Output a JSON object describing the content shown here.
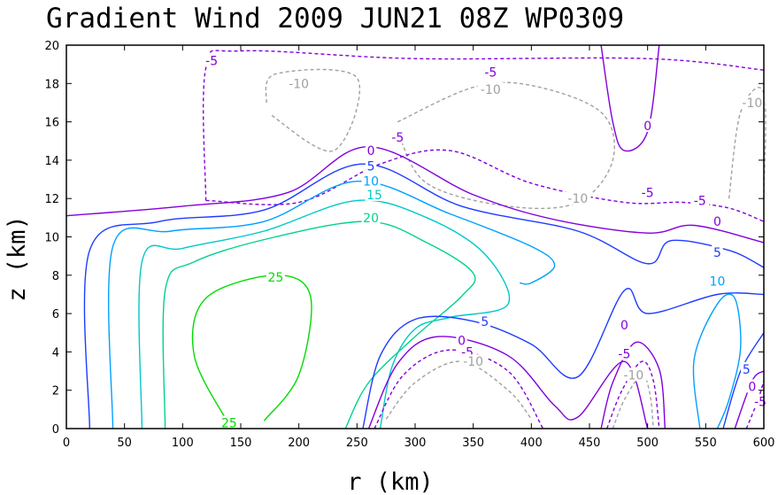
{
  "title": "Gradient Wind 2009 JUN21 08Z   WP0309",
  "chart_data": {
    "type": "contour",
    "title": "Gradient Wind 2009 JUN21 08Z   WP0309",
    "xlabel": "r (km)",
    "ylabel": "z (km)",
    "xlim": [
      0,
      600
    ],
    "ylim": [
      0,
      20
    ],
    "xticks": [
      "0",
      "50",
      "100",
      "150",
      "200",
      "250",
      "300",
      "350",
      "400",
      "450",
      "500",
      "550",
      "600"
    ],
    "yticks": [
      "0",
      "2",
      "4",
      "6",
      "8",
      "10",
      "12",
      "14",
      "16",
      "18",
      "20"
    ],
    "grid": false,
    "colors": {
      "-10": "#a0a0a0",
      "-5": "#8200dc",
      "0": "#8200dc",
      "5": "#1e3cff",
      "10": "#00a0ff",
      "15": "#00c8c8",
      "20": "#00d28c",
      "25": "#00dc00"
    },
    "contours": [
      {
        "level": -5,
        "label": "-5",
        "dashed": true,
        "points": [
          [
            120,
            11.9
          ],
          [
            120,
            18.8
          ],
          [
            150,
            19.7
          ],
          [
            300,
            19.3
          ],
          [
            500,
            19.3
          ],
          [
            600,
            18.7
          ]
        ]
      },
      {
        "level": -10,
        "label": "-10",
        "dashed": true,
        "points": [
          [
            172,
            17.0
          ],
          [
            180,
            18.5
          ],
          [
            250,
            18.3
          ],
          [
            230,
            14.5
          ],
          [
            175,
            16.4
          ]
        ]
      },
      {
        "level": -10,
        "label": "-10",
        "dashed": true,
        "points": [
          [
            285,
            16.0
          ],
          [
            350,
            17.8
          ],
          [
            400,
            17.9
          ],
          [
            460,
            16.5
          ],
          [
            470,
            14.0
          ],
          [
            440,
            11.8
          ],
          [
            380,
            11.6
          ],
          [
            310,
            12.8
          ],
          [
            285,
            15.5
          ]
        ]
      },
      {
        "level": -10,
        "label": "-10",
        "dashed": true,
        "points": [
          [
            570,
            12.0
          ],
          [
            580,
            16.5
          ],
          [
            600,
            17.5
          ],
          [
            600,
            12.0
          ]
        ]
      },
      {
        "level": 0,
        "label": "0",
        "dashed": false,
        "points": [
          [
            460,
            20
          ],
          [
            470,
            16
          ],
          [
            480,
            14.5
          ],
          [
            500,
            15.5
          ],
          [
            510,
            20
          ]
        ]
      },
      {
        "level": -5,
        "label": "-5",
        "dashed": true,
        "points": [
          [
            120,
            11.9
          ],
          [
            200,
            11.8
          ],
          [
            270,
            13.8
          ],
          [
            330,
            14.5
          ],
          [
            400,
            12.8
          ],
          [
            480,
            11.8
          ],
          [
            530,
            11.8
          ],
          [
            570,
            11.5
          ],
          [
            600,
            10.8
          ]
        ]
      },
      {
        "level": 0,
        "label": "0",
        "dashed": false,
        "points": [
          [
            0,
            11.1
          ],
          [
            100,
            11.6
          ],
          [
            190,
            12.3
          ],
          [
            260,
            14.7
          ],
          [
            350,
            12.2
          ],
          [
            420,
            10.9
          ],
          [
            500,
            10.2
          ],
          [
            540,
            10.6
          ],
          [
            600,
            9.7
          ]
        ]
      },
      {
        "level": 5,
        "label": "5",
        "dashed": false,
        "points": [
          [
            20,
            0
          ],
          [
            20,
            9.3
          ],
          [
            80,
            10.8
          ],
          [
            170,
            11.4
          ],
          [
            255,
            13.8
          ],
          [
            340,
            11.6
          ],
          [
            440,
            10.3
          ],
          [
            500,
            8.6
          ],
          [
            520,
            9.8
          ],
          [
            570,
            9.3
          ],
          [
            600,
            8.4
          ]
        ]
      },
      {
        "level": 10,
        "label": "10",
        "dashed": false,
        "points": [
          [
            40,
            0
          ],
          [
            40,
            9.5
          ],
          [
            90,
            10.3
          ],
          [
            170,
            10.8
          ],
          [
            250,
            12.9
          ],
          [
            330,
            11.2
          ],
          [
            400,
            9.5
          ],
          [
            420,
            8.5
          ],
          [
            400,
            7.6
          ],
          [
            390,
            7.6
          ]
        ]
      },
      {
        "level": 15,
        "label": "15",
        "dashed": false,
        "points": [
          [
            65,
            0
          ],
          [
            65,
            8.7
          ],
          [
            100,
            9.4
          ],
          [
            170,
            10.3
          ],
          [
            250,
            11.9
          ],
          [
            310,
            11.0
          ],
          [
            360,
            9.1
          ],
          [
            380,
            6.5
          ],
          [
            330,
            5.8
          ],
          [
            300,
            5.2
          ],
          [
            280,
            3.2
          ],
          [
            270,
            0
          ]
        ]
      },
      {
        "level": 20,
        "label": "20",
        "dashed": false,
        "points": [
          [
            85,
            0
          ],
          [
            85,
            7.2
          ],
          [
            110,
            8.7
          ],
          [
            180,
            10.0
          ],
          [
            260,
            10.8
          ],
          [
            310,
            9.7
          ],
          [
            350,
            8.1
          ],
          [
            340,
            6.9
          ],
          [
            300,
            4.8
          ],
          [
            260,
            2.4
          ],
          [
            240,
            0
          ]
        ]
      },
      {
        "level": 25,
        "label": "25",
        "dashed": false,
        "points": [
          [
            140,
            0.2
          ],
          [
            110,
            3.8
          ],
          [
            120,
            6.8
          ],
          [
            180,
            8.0
          ],
          [
            210,
            6.9
          ],
          [
            200,
            2.8
          ],
          [
            170,
            0.4
          ]
        ]
      },
      {
        "level": 5,
        "label": "5",
        "dashed": false,
        "points": [
          [
            255,
            0
          ],
          [
            270,
            3.8
          ],
          [
            300,
            5.7
          ],
          [
            350,
            5.6
          ],
          [
            400,
            4.4
          ],
          [
            440,
            2.7
          ],
          [
            480,
            7.2
          ],
          [
            500,
            6.0
          ],
          [
            560,
            7.0
          ],
          [
            600,
            7.0
          ]
        ]
      },
      {
        "level": 0,
        "label": "0",
        "dashed": false,
        "points": [
          [
            260,
            0
          ],
          [
            285,
            3.4
          ],
          [
            320,
            4.8
          ],
          [
            380,
            3.8
          ],
          [
            420,
            1.2
          ],
          [
            440,
            0.6
          ],
          [
            480,
            3.5
          ],
          [
            500,
            0
          ]
        ]
      },
      {
        "level": -5,
        "label": "-5",
        "dashed": true,
        "points": [
          [
            265,
            0
          ],
          [
            290,
            2.8
          ],
          [
            330,
            4.1
          ],
          [
            380,
            3.0
          ],
          [
            410,
            0
          ]
        ]
      },
      {
        "level": -10,
        "label": "-10",
        "dashed": true,
        "points": [
          [
            275,
            0.5
          ],
          [
            300,
            2.4
          ],
          [
            340,
            3.5
          ],
          [
            380,
            2.0
          ],
          [
            400,
            0.5
          ]
        ]
      },
      {
        "level": 0,
        "label": "0",
        "dashed": false,
        "points": [
          [
            460,
            0
          ],
          [
            470,
            2.4
          ],
          [
            490,
            4.5
          ],
          [
            510,
            3.1
          ],
          [
            515,
            0
          ]
        ]
      },
      {
        "level": -5,
        "label": "-5",
        "dashed": true,
        "points": [
          [
            465,
            0
          ],
          [
            478,
            2.0
          ],
          [
            495,
            3.5
          ],
          [
            505,
            2.5
          ],
          [
            510,
            0
          ]
        ]
      },
      {
        "level": -10,
        "label": "-10",
        "dashed": true,
        "points": [
          [
            470,
            0
          ],
          [
            480,
            1.5
          ],
          [
            495,
            2.8
          ],
          [
            502,
            1.8
          ],
          [
            505,
            0
          ]
        ]
      },
      {
        "level": 10,
        "label": "10",
        "dashed": false,
        "points": [
          [
            545,
            0
          ],
          [
            540,
            3.6
          ],
          [
            560,
            6.5
          ],
          [
            575,
            6.8
          ],
          [
            580,
            4.2
          ],
          [
            570,
            1.5
          ],
          [
            560,
            0
          ]
        ]
      },
      {
        "level": 5,
        "label": "5",
        "dashed": false,
        "points": [
          [
            565,
            0
          ],
          [
            580,
            3.0
          ],
          [
            600,
            5.0
          ]
        ]
      },
      {
        "level": 0,
        "label": "0",
        "dashed": false,
        "points": [
          [
            575,
            0
          ],
          [
            590,
            2.5
          ],
          [
            600,
            3.0
          ]
        ]
      },
      {
        "level": -5,
        "label": "-5",
        "dashed": true,
        "points": [
          [
            585,
            0
          ],
          [
            595,
            1.5
          ],
          [
            600,
            2.5
          ]
        ]
      }
    ],
    "labels": [
      {
        "text": "-5",
        "r": 125,
        "z": 19.2,
        "color": "#8200dc"
      },
      {
        "text": "-5",
        "r": 365,
        "z": 18.6,
        "color": "#8200dc"
      },
      {
        "text": "-10",
        "r": 200,
        "z": 18.0,
        "color": "#a0a0a0"
      },
      {
        "text": "-10",
        "r": 365,
        "z": 17.7,
        "color": "#a0a0a0"
      },
      {
        "text": "-10",
        "r": 590,
        "z": 17.0,
        "color": "#a0a0a0"
      },
      {
        "text": "0",
        "r": 500,
        "z": 15.8,
        "color": "#8200dc"
      },
      {
        "text": "-5",
        "r": 285,
        "z": 15.2,
        "color": "#8200dc"
      },
      {
        "text": "0",
        "r": 262,
        "z": 14.5,
        "color": "#8200dc"
      },
      {
        "text": "5",
        "r": 262,
        "z": 13.7,
        "color": "#1e3cff"
      },
      {
        "text": "10",
        "r": 262,
        "z": 12.9,
        "color": "#00a0ff"
      },
      {
        "text": "15",
        "r": 265,
        "z": 12.2,
        "color": "#00c8c8"
      },
      {
        "text": "20",
        "r": 262,
        "z": 11.0,
        "color": "#00d28c"
      },
      {
        "text": "-10",
        "r": 440,
        "z": 12.0,
        "color": "#a0a0a0"
      },
      {
        "text": "-5",
        "r": 500,
        "z": 12.3,
        "color": "#8200dc"
      },
      {
        "text": "-5",
        "r": 545,
        "z": 11.9,
        "color": "#8200dc"
      },
      {
        "text": "0",
        "r": 560,
        "z": 10.8,
        "color": "#8200dc"
      },
      {
        "text": "5",
        "r": 560,
        "z": 9.2,
        "color": "#1e3cff"
      },
      {
        "text": "10",
        "r": 560,
        "z": 7.7,
        "color": "#00a0ff"
      },
      {
        "text": "25",
        "r": 180,
        "z": 7.9,
        "color": "#00dc00"
      },
      {
        "text": "25",
        "r": 140,
        "z": 0.3,
        "color": "#00dc00"
      },
      {
        "text": "5",
        "r": 360,
        "z": 5.6,
        "color": "#1e3cff"
      },
      {
        "text": "0",
        "r": 340,
        "z": 4.6,
        "color": "#8200dc"
      },
      {
        "text": "-5",
        "r": 345,
        "z": 4.0,
        "color": "#8200dc"
      },
      {
        "text": "-10",
        "r": 350,
        "z": 3.5,
        "color": "#a0a0a0"
      },
      {
        "text": "0",
        "r": 480,
        "z": 5.4,
        "color": "#8200dc"
      },
      {
        "text": "-5",
        "r": 480,
        "z": 3.9,
        "color": "#8200dc"
      },
      {
        "text": "-10",
        "r": 488,
        "z": 2.8,
        "color": "#a0a0a0"
      },
      {
        "text": "5",
        "r": 585,
        "z": 3.1,
        "color": "#1e3cff"
      },
      {
        "text": "0",
        "r": 590,
        "z": 2.2,
        "color": "#8200dc"
      },
      {
        "text": "-5",
        "r": 597,
        "z": 1.4,
        "color": "#8200dc"
      }
    ]
  }
}
